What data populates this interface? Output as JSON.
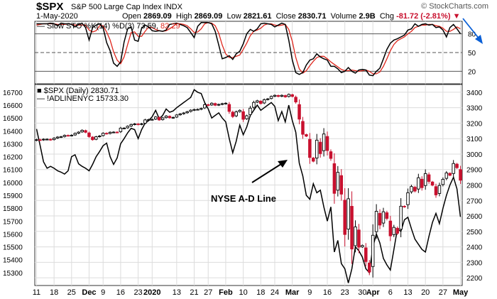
{
  "header": {
    "ticker": "$SPX",
    "description": "S&P 500 Large Cap Index INDX",
    "credit": "© StockCharts.com",
    "date": "1-May-2020",
    "open_label": "Open",
    "open": "2869.09",
    "high_label": "High",
    "high": "2869.09",
    "low_label": "Low",
    "low": "2821.61",
    "close_label": "Close",
    "close": "2830.71",
    "volume_label": "Volume",
    "volume": "2.9B",
    "chg_label": "Chg",
    "chg": "-81.72 (-2.81%)"
  },
  "colors": {
    "up": "#000000",
    "down": "#c8102e",
    "stoch_k": "#000000",
    "stoch_d": "#e0281e",
    "adline": "#000000",
    "arrow": "#0a5fd6",
    "grid": "#dcdcdc"
  },
  "chart_data": [
    {
      "type": "line",
      "title": "Slow STO %K(14) %D(3)",
      "k_label": "73.59",
      "d_label": "82.29",
      "ylim": [
        0,
        100
      ],
      "yticks": [
        20,
        50,
        80
      ],
      "reference_lines": [
        20,
        50,
        80
      ],
      "grid": true,
      "series": [
        {
          "name": "%K",
          "values": [
            96,
            96,
            96,
            96,
            97,
            96,
            93,
            97,
            96,
            96,
            95,
            91,
            95,
            97,
            90,
            70,
            90,
            94,
            96,
            90,
            66,
            53,
            33,
            28,
            35,
            67,
            88,
            91,
            70,
            68,
            89,
            94,
            91,
            85,
            84,
            85,
            84,
            86,
            95,
            96,
            97,
            95,
            93,
            90,
            82,
            74,
            92,
            98,
            98,
            98,
            96,
            84,
            62,
            40,
            42,
            45,
            39,
            48,
            52,
            64,
            80,
            87,
            84,
            88,
            96,
            97,
            96,
            95,
            91,
            94,
            97,
            95,
            70,
            38,
            18,
            15,
            18,
            30,
            38,
            40,
            48,
            43,
            40,
            38,
            28,
            28,
            24,
            18,
            20,
            26,
            20,
            17,
            22,
            23,
            22,
            14,
            13,
            20,
            25,
            40,
            55,
            65,
            70,
            72,
            75,
            78,
            86,
            88,
            96,
            92,
            95,
            96,
            94,
            95,
            90,
            91,
            86,
            75,
            90,
            95,
            88,
            80
          ]
        },
        {
          "name": "%D",
          "values": [
            94,
            95,
            96,
            96,
            96,
            96,
            95,
            95,
            95,
            96,
            95,
            94,
            94,
            94,
            94,
            86,
            83,
            85,
            93,
            93,
            83,
            70,
            51,
            38,
            32,
            43,
            63,
            82,
            83,
            76,
            76,
            84,
            91,
            90,
            87,
            85,
            84,
            85,
            88,
            92,
            96,
            96,
            95,
            93,
            88,
            82,
            83,
            88,
            96,
            98,
            97,
            93,
            81,
            62,
            48,
            42,
            42,
            44,
            46,
            55,
            65,
            77,
            84,
            86,
            89,
            94,
            96,
            96,
            94,
            93,
            94,
            95,
            87,
            68,
            42,
            24,
            17,
            21,
            29,
            36,
            42,
            44,
            44,
            40,
            35,
            31,
            27,
            23,
            21,
            21,
            22,
            21,
            20,
            21,
            22,
            20,
            16,
            16,
            19,
            28,
            40,
            53,
            63,
            69,
            72,
            75,
            80,
            84,
            90,
            92,
            94,
            94,
            95,
            95,
            93,
            92,
            89,
            84,
            84,
            87,
            91,
            88
          ]
        }
      ]
    },
    {
      "type": "candlestick",
      "legend": [
        {
          "name": "$SPX (Daily)",
          "value": "2830.71"
        },
        {
          "name": "!ADLINENYC",
          "value": "15733.30"
        }
      ],
      "y_right_label_ticks": [
        2200,
        2300,
        2400,
        2500,
        2600,
        2700,
        2800,
        2900,
        3000,
        3100,
        3200,
        3300,
        3400
      ],
      "y_right_lim": [
        2150,
        3450
      ],
      "y_left_label_ticks": [
        15300,
        15400,
        15500,
        15600,
        15700,
        15800,
        15900,
        16000,
        16100,
        16200,
        16300,
        16400,
        16500,
        16600,
        16700
      ],
      "y_left_lim": [
        15200,
        16760
      ],
      "x_tick_labels": [
        "11",
        "18",
        "25",
        "Dec",
        "9",
        "16",
        "23",
        "2020",
        "13",
        "21",
        "27",
        "Feb",
        "10",
        "18",
        "24",
        "Mar",
        "9",
        "16",
        "23",
        "30",
        "Apr",
        "6",
        "13",
        "20",
        "27",
        "May"
      ],
      "x_tick_index": [
        0,
        5,
        10,
        15,
        19,
        24,
        29,
        33,
        40,
        45,
        49,
        54,
        59,
        64,
        68,
        73,
        78,
        83,
        88,
        93,
        96,
        101,
        106,
        111,
        116,
        121
      ],
      "x_bold_labels": [
        "Dec",
        "2020",
        "Feb",
        "Mar",
        "Apr",
        "May"
      ],
      "annotation": "NYSE A-D Line",
      "spx_close": [
        3093,
        3091,
        3096,
        3096,
        3092,
        3103,
        3110,
        3112,
        3121,
        3120,
        3122,
        3134,
        3142,
        3154,
        3141,
        3113,
        3093,
        3112,
        3117,
        3135,
        3132,
        3141,
        3142,
        3141,
        3168,
        3168,
        3180,
        3191,
        3195,
        3192,
        3196,
        3221,
        3223,
        3224,
        3240,
        3221,
        3234,
        3246,
        3235,
        3237,
        3253,
        3260,
        3266,
        3274,
        3284,
        3288,
        3289,
        3295,
        3320,
        3316,
        3329,
        3316,
        3321,
        3326,
        3329,
        3276,
        3243,
        3273,
        3283,
        3225,
        3248,
        3297,
        3334,
        3345,
        3327,
        3352,
        3357,
        3373,
        3380,
        3373,
        3380,
        3370,
        3386,
        3373,
        3337,
        3226,
        3128,
        3116,
        2978,
        2954,
        3090,
        3003,
        3130,
        3023,
        2972,
        2746,
        2882,
        2741,
        2480,
        2711,
        2386,
        2529,
        2398,
        2409,
        2305,
        2237,
        2475,
        2630,
        2541,
        2627,
        2584,
        2471,
        2526,
        2488,
        2663,
        2659,
        2750,
        2790,
        2761,
        2847,
        2783,
        2874,
        2823,
        2799,
        2736,
        2797,
        2837,
        2878,
        2863,
        2939,
        2912,
        2831
      ],
      "adline": [
        16415,
        16290,
        16160,
        16110,
        16125,
        16110,
        16090,
        16080,
        16065,
        16090,
        16200,
        16215,
        16145,
        16125,
        16110,
        16090,
        16140,
        16200,
        16240,
        16285,
        16305,
        16200,
        16140,
        16190,
        16300,
        16340,
        16385,
        16420,
        16410,
        16340,
        16410,
        16460,
        16480,
        16510,
        16560,
        16495,
        16520,
        16570,
        16545,
        16555,
        16580,
        16600,
        16620,
        16640,
        16660,
        16720,
        16700,
        16690,
        16620,
        16570,
        16500,
        16520,
        16540,
        16500,
        16470,
        16340,
        16230,
        16320,
        16445,
        16370,
        16430,
        16520,
        16560,
        16600,
        16560,
        16580,
        16600,
        16620,
        16590,
        16480,
        16550,
        16470,
        16600,
        16480,
        16390,
        16150,
        16050,
        15900,
        15870,
        15990,
        15920,
        15940,
        15810,
        15700,
        15810,
        15460,
        15550,
        15370,
        15330,
        15220,
        15330,
        15500,
        15470,
        15420,
        15330,
        15300,
        15500,
        15600,
        15530,
        15410,
        15360,
        15320,
        15480,
        15640,
        15620,
        15710,
        15730,
        15640,
        15560,
        15520,
        15480,
        15460,
        15580,
        15690,
        15760,
        15680,
        15800,
        15900,
        15980,
        16040,
        15950,
        15733
      ]
    }
  ]
}
